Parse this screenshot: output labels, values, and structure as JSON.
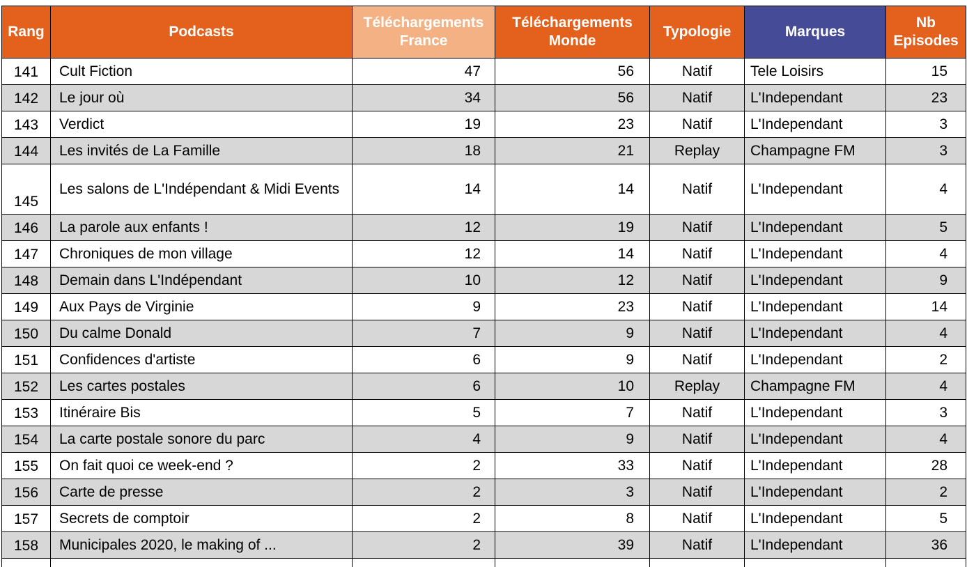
{
  "colors": {
    "header-orange": "#E4611D",
    "header-light-orange": "#F4B183",
    "header-indigo": "#454B96",
    "row-stripe": "#D7D7D7",
    "header-text": "#FFFFFF",
    "body-text": "#000000",
    "border": "#000000"
  },
  "chart_data": {
    "type": "table",
    "columns": [
      "Rang",
      "Podcasts",
      "Téléchargements France",
      "Téléchargements Monde",
      "Typologie",
      "Marques",
      "Nb Episodes"
    ],
    "rows": [
      [
        141,
        "Cult Fiction",
        47,
        56,
        "Natif",
        "Tele Loisirs",
        15
      ],
      [
        142,
        "Le jour où",
        34,
        56,
        "Natif",
        "L'Independant",
        23
      ],
      [
        143,
        "Verdict",
        19,
        23,
        "Natif",
        "L'Independant",
        3
      ],
      [
        144,
        "Les invités de La Famille",
        18,
        21,
        "Replay",
        "Champagne FM",
        3
      ],
      [
        145,
        "Les salons de L'Indépendant & Midi Events",
        14,
        14,
        "Natif",
        "L'Independant",
        4
      ],
      [
        146,
        "La parole aux enfants !",
        12,
        19,
        "Natif",
        "L'Independant",
        5
      ],
      [
        147,
        "Chroniques de mon village",
        12,
        14,
        "Natif",
        "L'Independant",
        4
      ],
      [
        148,
        "Demain dans L'Indépendant",
        10,
        12,
        "Natif",
        "L'Independant",
        9
      ],
      [
        149,
        "Aux Pays de Virginie",
        9,
        23,
        "Natif",
        "L'Independant",
        14
      ],
      [
        150,
        "Du calme Donald",
        7,
        9,
        "Natif",
        "L'Independant",
        4
      ],
      [
        151,
        "Confidences d'artiste",
        6,
        9,
        "Natif",
        "L'Independant",
        2
      ],
      [
        152,
        "Les cartes postales",
        6,
        10,
        "Replay",
        "Champagne FM",
        4
      ],
      [
        153,
        "Itinéraire Bis",
        5,
        7,
        "Natif",
        "L'Independant",
        3
      ],
      [
        154,
        "La carte postale sonore du parc",
        4,
        9,
        "Natif",
        "L'Independant",
        4
      ],
      [
        155,
        "On fait quoi ce week-end ?",
        2,
        33,
        "Natif",
        "L'Independant",
        28
      ],
      [
        156,
        "Carte de presse",
        2,
        3,
        "Natif",
        "L'Independant",
        2
      ],
      [
        157,
        "Secrets de comptoir",
        2,
        8,
        "Natif",
        "L'Independant",
        5
      ],
      [
        158,
        "Municipales 2020, le making of ...",
        2,
        39,
        "Natif",
        "L'Independant",
        36
      ]
    ]
  }
}
